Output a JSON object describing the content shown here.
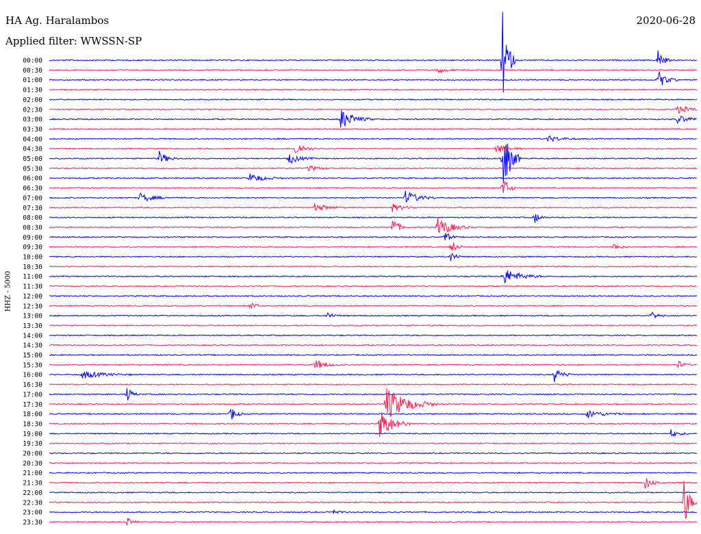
{
  "header": {
    "station": "HA Ag. Haralambos",
    "filter": "Applied filter: WWSSN-SP",
    "date": "2020-06-28"
  },
  "axis": {
    "ylabel": "HHZ - 5000"
  },
  "colors": {
    "trace_a": "#0000ff",
    "trace_b": "#ff1a4d",
    "text": "#000000"
  },
  "chart_data": {
    "type": "line",
    "title": "HA Ag. Haralambos",
    "subtitle": "Applied filter: WWSSN-SP",
    "ylabel": "HHZ - 5000",
    "grid": false,
    "rows": [
      "00:00",
      "00:30",
      "01:00",
      "01:30",
      "02:00",
      "02:30",
      "03:00",
      "03:30",
      "04:00",
      "04:30",
      "05:00",
      "05:30",
      "06:00",
      "06:30",
      "07:00",
      "07:30",
      "08:00",
      "08:30",
      "09:00",
      "09:30",
      "10:00",
      "10:30",
      "11:00",
      "11:30",
      "12:00",
      "12:30",
      "13:00",
      "13:30",
      "14:00",
      "14:30",
      "15:00",
      "15:30",
      "16:00",
      "16:30",
      "17:00",
      "17:30",
      "18:00",
      "18:30",
      "19:00",
      "19:30",
      "20:00",
      "20:30",
      "21:00",
      "21:30",
      "22:00",
      "22:30",
      "23:00",
      "23:30"
    ],
    "row_colors": [
      "blue",
      "red"
    ],
    "events": [
      {
        "row": 0,
        "t": 0.7,
        "amp": 6.5,
        "dur": 0.02
      },
      {
        "row": 0,
        "t": 0.94,
        "amp": 1.5,
        "dur": 0.02
      },
      {
        "row": 1,
        "t": 0.6,
        "amp": 0.4,
        "dur": 0.03
      },
      {
        "row": 2,
        "t": 0.94,
        "amp": 1.2,
        "dur": 0.03
      },
      {
        "row": 5,
        "t": 0.97,
        "amp": 0.5,
        "dur": 0.05
      },
      {
        "row": 6,
        "t": 0.45,
        "amp": 1.3,
        "dur": 0.05
      },
      {
        "row": 6,
        "t": 0.97,
        "amp": 0.5,
        "dur": 0.05
      },
      {
        "row": 8,
        "t": 0.77,
        "amp": 0.4,
        "dur": 0.05
      },
      {
        "row": 9,
        "t": 0.38,
        "amp": 1.0,
        "dur": 0.03
      },
      {
        "row": 9,
        "t": 0.69,
        "amp": 0.6,
        "dur": 0.04
      },
      {
        "row": 10,
        "t": 0.17,
        "amp": 0.9,
        "dur": 0.03
      },
      {
        "row": 10,
        "t": 0.37,
        "amp": 0.7,
        "dur": 0.04
      },
      {
        "row": 10,
        "t": 0.7,
        "amp": 4.5,
        "dur": 0.03
      },
      {
        "row": 11,
        "t": 0.4,
        "amp": 0.4,
        "dur": 0.04
      },
      {
        "row": 12,
        "t": 0.31,
        "amp": 0.6,
        "dur": 0.05
      },
      {
        "row": 13,
        "t": 0.7,
        "amp": 1.6,
        "dur": 0.02
      },
      {
        "row": 14,
        "t": 0.14,
        "amp": 0.6,
        "dur": 0.05
      },
      {
        "row": 14,
        "t": 0.55,
        "amp": 0.9,
        "dur": 0.05
      },
      {
        "row": 15,
        "t": 0.41,
        "amp": 0.5,
        "dur": 0.05
      },
      {
        "row": 15,
        "t": 0.53,
        "amp": 0.5,
        "dur": 0.04
      },
      {
        "row": 16,
        "t": 0.75,
        "amp": 0.7,
        "dur": 0.02
      },
      {
        "row": 17,
        "t": 0.53,
        "amp": 1.5,
        "dur": 0.02
      },
      {
        "row": 17,
        "t": 0.6,
        "amp": 1.3,
        "dur": 0.05
      },
      {
        "row": 18,
        "t": 0.61,
        "amp": 0.9,
        "dur": 0.02
      },
      {
        "row": 19,
        "t": 0.87,
        "amp": 0.4,
        "dur": 0.03
      },
      {
        "row": 19,
        "t": 0.62,
        "amp": 1.0,
        "dur": 0.02
      },
      {
        "row": 20,
        "t": 0.62,
        "amp": 0.8,
        "dur": 0.02
      },
      {
        "row": 22,
        "t": 0.7,
        "amp": 1.1,
        "dur": 0.06
      },
      {
        "row": 22,
        "t": 0.7,
        "amp": 0.7,
        "dur": 0.01
      },
      {
        "row": 25,
        "t": 0.31,
        "amp": 0.7,
        "dur": 0.02
      },
      {
        "row": 26,
        "t": 0.43,
        "amp": 0.5,
        "dur": 0.02
      },
      {
        "row": 26,
        "t": 0.93,
        "amp": 0.6,
        "dur": 0.02
      },
      {
        "row": 31,
        "t": 0.41,
        "amp": 0.7,
        "dur": 0.04
      },
      {
        "row": 31,
        "t": 0.97,
        "amp": 0.6,
        "dur": 0.02
      },
      {
        "row": 32,
        "t": 0.05,
        "amp": 0.5,
        "dur": 0.08
      },
      {
        "row": 32,
        "t": 0.78,
        "amp": 0.9,
        "dur": 0.03
      },
      {
        "row": 34,
        "t": 0.12,
        "amp": 0.9,
        "dur": 0.02
      },
      {
        "row": 35,
        "t": 0.52,
        "amp": 2.2,
        "dur": 0.08
      },
      {
        "row": 36,
        "t": 0.28,
        "amp": 1.0,
        "dur": 0.02
      },
      {
        "row": 36,
        "t": 0.83,
        "amp": 0.5,
        "dur": 0.06
      },
      {
        "row": 37,
        "t": 0.51,
        "amp": 2.0,
        "dur": 0.05
      },
      {
        "row": 38,
        "t": 0.96,
        "amp": 0.5,
        "dur": 0.03
      },
      {
        "row": 43,
        "t": 0.92,
        "amp": 0.8,
        "dur": 0.03
      },
      {
        "row": 45,
        "t": 0.98,
        "amp": 3.5,
        "dur": 0.02
      },
      {
        "row": 46,
        "t": 0.44,
        "amp": 0.4,
        "dur": 0.02
      },
      {
        "row": 47,
        "t": 0.12,
        "amp": 0.6,
        "dur": 0.02
      }
    ]
  }
}
